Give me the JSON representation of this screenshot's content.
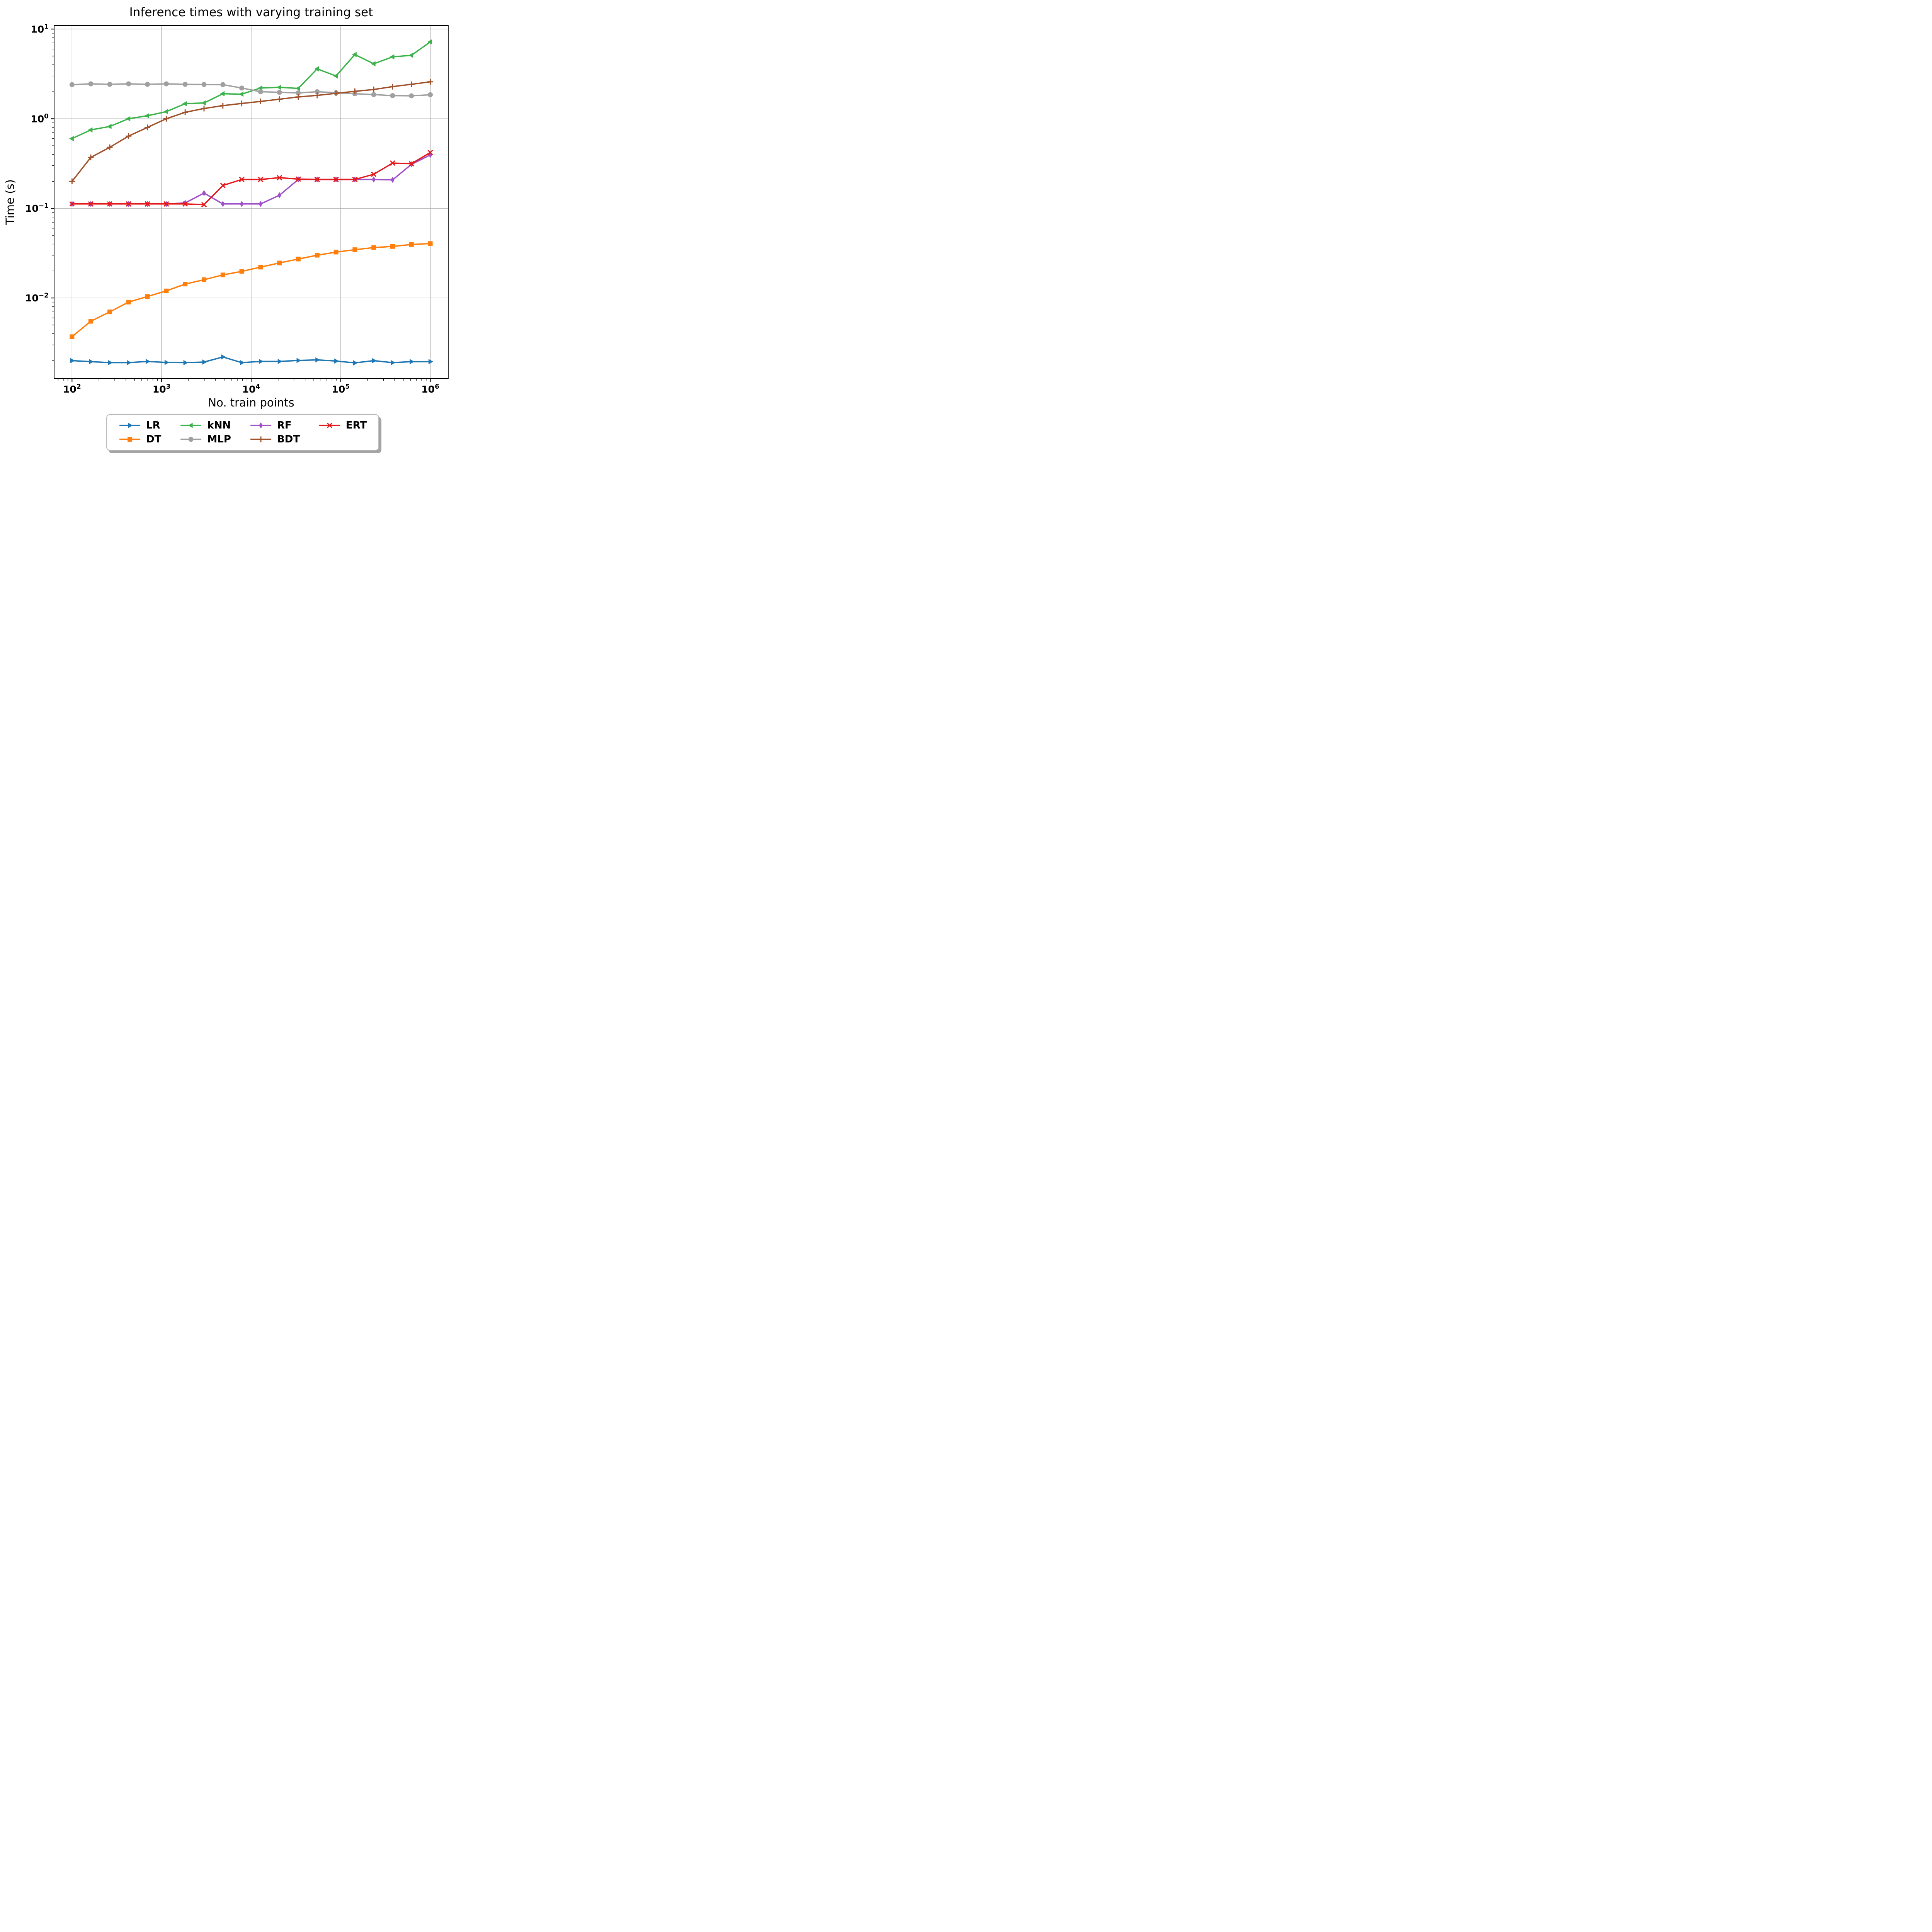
{
  "chart_data": {
    "type": "line",
    "title": "Inference times with varying training set",
    "xlabel": "No. train points",
    "ylabel": "Time (s)",
    "x_scale": "log",
    "y_scale": "log",
    "x_log_range": [
      1.8,
      6.2
    ],
    "y_log_range": [
      -2.9,
      1.04
    ],
    "grid": true,
    "grid_color": "#b0b0b0",
    "axis_color": "#000000",
    "legend_position": "below-center",
    "legend_ncol": 4,
    "legend_order": [
      "LR",
      "DT",
      "kNN",
      "MLP",
      "RF",
      "BDT",
      "ERT"
    ],
    "x_ticks": [
      {
        "exp": 2,
        "base": "10",
        "sup": "2"
      },
      {
        "exp": 3,
        "base": "10",
        "sup": "3"
      },
      {
        "exp": 4,
        "base": "10",
        "sup": "4"
      },
      {
        "exp": 5,
        "base": "10",
        "sup": "5"
      },
      {
        "exp": 6,
        "base": "10",
        "sup": "6"
      }
    ],
    "y_ticks": [
      {
        "exp": -2,
        "base": "10",
        "sup": "−2"
      },
      {
        "exp": -1,
        "base": "10",
        "sup": "−1"
      },
      {
        "exp": 0,
        "base": "10",
        "sup": "0"
      },
      {
        "exp": 1,
        "base": "10",
        "sup": "1"
      }
    ],
    "x": [
      100,
      162,
      264,
      428,
      695,
      1129,
      1833,
      2976,
      4833,
      7848,
      12743,
      20691,
      33598,
      54556,
      88587,
      143845,
      233572,
      379269,
      615848,
      1000000
    ],
    "series": [
      {
        "name": "LR",
        "color": "#1f77b4",
        "marker": "triangle-right",
        "values": [
          0.002,
          0.00195,
          0.0019,
          0.0019,
          0.00196,
          0.00191,
          0.0019,
          0.00193,
          0.0022,
          0.0019,
          0.00196,
          0.00196,
          0.00201,
          0.00204,
          0.00198,
          0.00189,
          0.002,
          0.0019,
          0.00195,
          0.00195
        ]
      },
      {
        "name": "DT",
        "color": "#ff7f0e",
        "marker": "square",
        "values": [
          0.0037,
          0.0055,
          0.007,
          0.009,
          0.0104,
          0.012,
          0.0143,
          0.016,
          0.0181,
          0.0198,
          0.0221,
          0.0246,
          0.0272,
          0.03,
          0.0325,
          0.0346,
          0.0365,
          0.0376,
          0.0395,
          0.0405
        ]
      },
      {
        "name": "kNN",
        "color": "#3cb44b",
        "marker": "triangle-left",
        "values": [
          0.6,
          0.75,
          0.82,
          1.0,
          1.08,
          1.2,
          1.47,
          1.5,
          1.9,
          1.88,
          2.2,
          2.24,
          2.18,
          3.6,
          3.0,
          5.2,
          4.1,
          4.9,
          5.1,
          7.2
        ]
      },
      {
        "name": "MLP",
        "color": "#a0a0a0",
        "marker": "circle",
        "values": [
          2.4,
          2.45,
          2.42,
          2.45,
          2.42,
          2.45,
          2.42,
          2.41,
          2.4,
          2.2,
          2.0,
          1.97,
          1.94,
          2.0,
          1.95,
          1.9,
          1.86,
          1.81,
          1.8,
          1.85
        ]
      },
      {
        "name": "RF",
        "color": "#a050c8",
        "marker": "thin-diamond",
        "values": [
          0.112,
          0.112,
          0.112,
          0.112,
          0.112,
          0.112,
          0.115,
          0.148,
          0.112,
          0.112,
          0.112,
          0.14,
          0.21,
          0.21,
          0.21,
          0.21,
          0.21,
          0.208,
          0.31,
          0.395
        ]
      },
      {
        "name": "BDT",
        "color": "#a0522d",
        "marker": "plus",
        "values": [
          0.2,
          0.37,
          0.48,
          0.64,
          0.8,
          1.0,
          1.18,
          1.3,
          1.4,
          1.48,
          1.56,
          1.65,
          1.75,
          1.82,
          1.92,
          2.02,
          2.12,
          2.28,
          2.42,
          2.58
        ]
      },
      {
        "name": "ERT",
        "color": "#e41a1c",
        "marker": "x",
        "values": [
          0.112,
          0.112,
          0.112,
          0.112,
          0.112,
          0.112,
          0.112,
          0.11,
          0.18,
          0.21,
          0.21,
          0.22,
          0.212,
          0.21,
          0.21,
          0.21,
          0.24,
          0.32,
          0.315,
          0.42
        ]
      }
    ]
  }
}
